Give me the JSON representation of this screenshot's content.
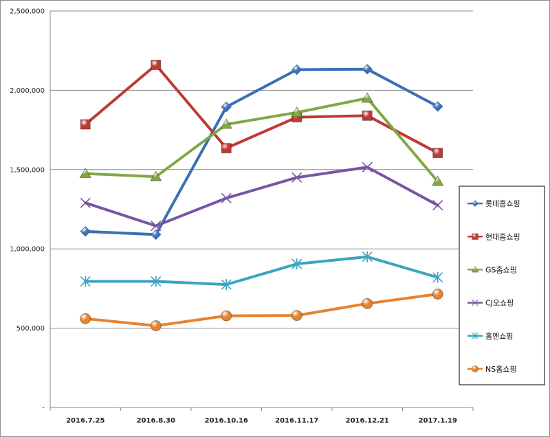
{
  "chart_data": {
    "type": "line",
    "categories": [
      "2016.7.25",
      "2016.8.30",
      "2016.10.16",
      "2016.11.17",
      "2016.12.21",
      "2017.1.19"
    ],
    "ylim": [
      0,
      2500000
    ],
    "y_ticks": [
      "-",
      "500,000",
      "1,000,000",
      "1,500,000",
      "2,000,000",
      "2,500,000"
    ],
    "grid": "horizontal",
    "legend_position": "right",
    "series": [
      {
        "name": "롯데홈쇼핑",
        "color": "#3b6fb6",
        "marker": "diamond",
        "values": [
          1110000,
          1090000,
          1895000,
          2130000,
          2133000,
          1898000
        ]
      },
      {
        "name": "현대홈쇼핑",
        "color": "#be3a36",
        "marker": "square",
        "values": [
          1785000,
          2160000,
          1635000,
          1830000,
          1840000,
          1605000
        ]
      },
      {
        "name": "GS홈쇼핑",
        "color": "#82a745",
        "marker": "triangle",
        "values": [
          1475000,
          1455000,
          1785000,
          1860000,
          1950000,
          1425000
        ]
      },
      {
        "name": "CJ오쇼핑",
        "color": "#7856a2",
        "marker": "x",
        "values": [
          1290000,
          1145000,
          1320000,
          1450000,
          1515000,
          1275000
        ]
      },
      {
        "name": "홈앤쇼핑",
        "color": "#3ba4c2",
        "marker": "asterisk",
        "values": [
          795000,
          795000,
          775000,
          905000,
          950000,
          820000
        ]
      },
      {
        "name": "NS홈쇼핑",
        "color": "#e7822e",
        "marker": "circle",
        "values": [
          560000,
          515000,
          578000,
          580000,
          655000,
          715000
        ]
      }
    ]
  }
}
